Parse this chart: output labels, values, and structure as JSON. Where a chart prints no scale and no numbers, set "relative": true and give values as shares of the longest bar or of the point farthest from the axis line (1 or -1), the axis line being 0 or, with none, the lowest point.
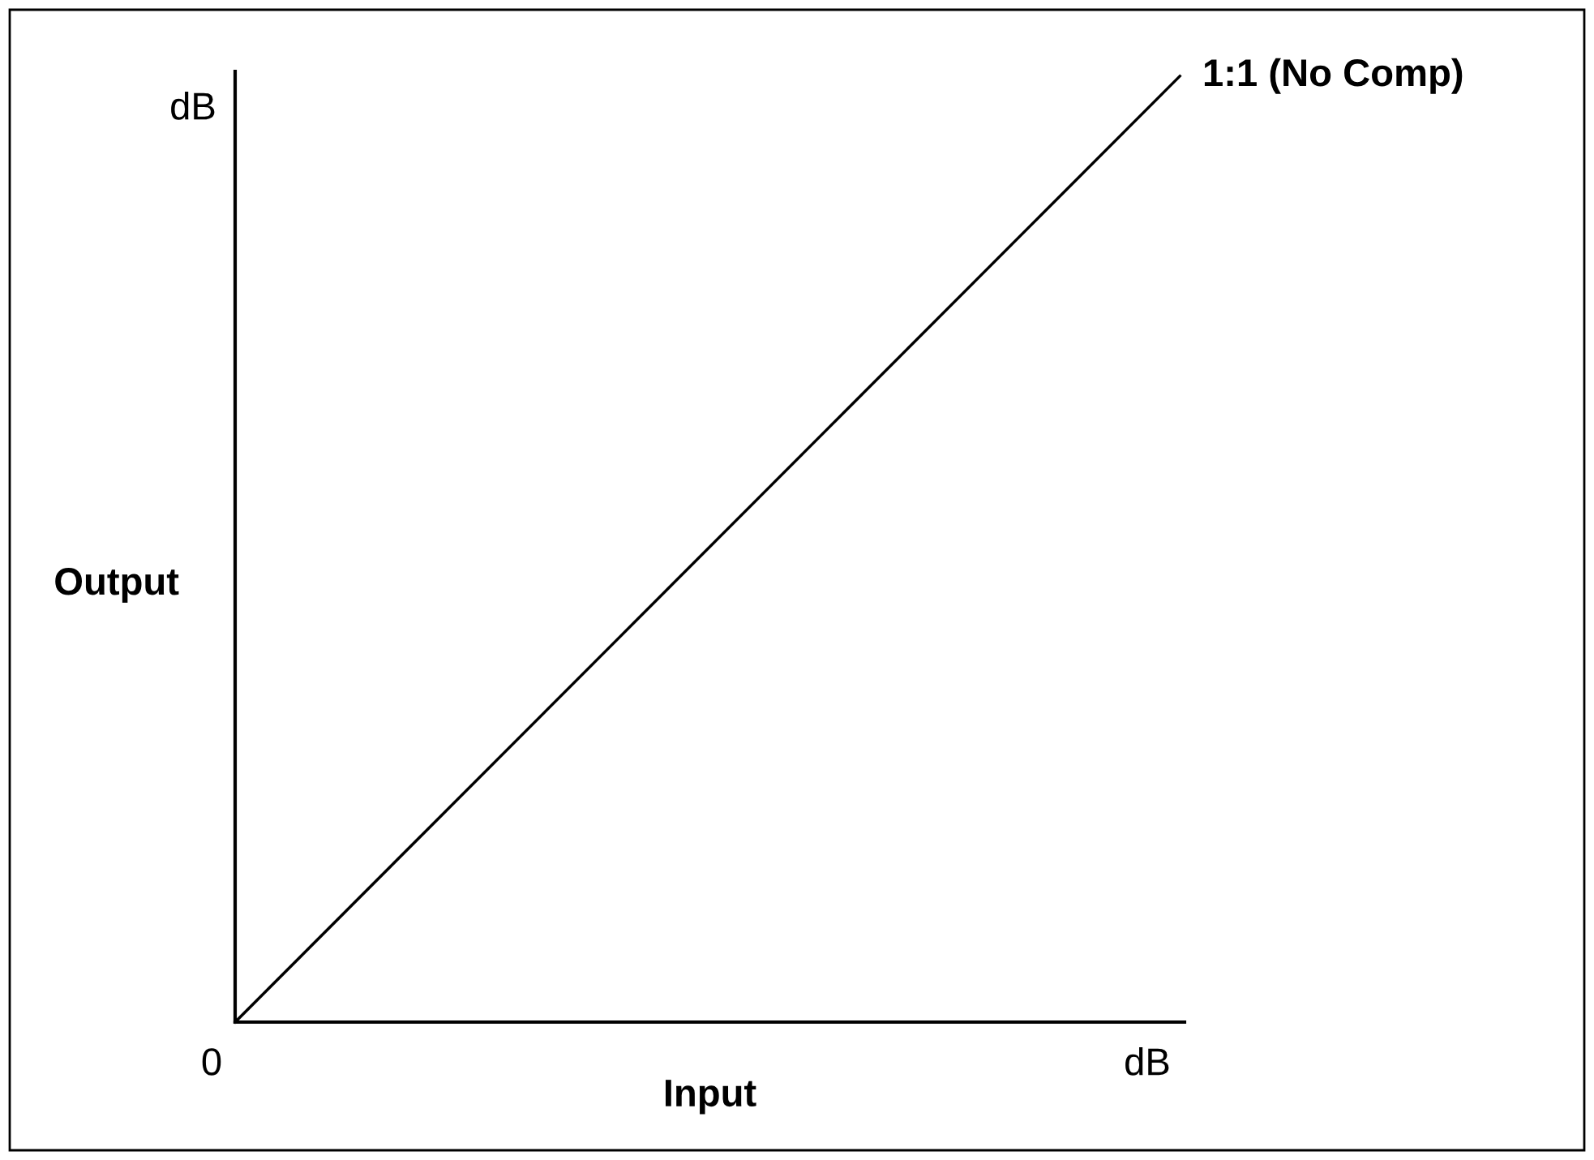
{
  "chart_data": {
    "type": "line",
    "relative": true,
    "xlabel": "Input",
    "ylabel": "Output",
    "categories": [
      null,
      null
    ],
    "series": [
      {
        "name": "1:1 (No Comp)",
        "color": "#000000",
        "values": [
          0,
          1
        ]
      }
    ],
    "annotations": [
      "0",
      "dB",
      "dB"
    ],
    "marker": "none",
    "line_style": "solid"
  }
}
